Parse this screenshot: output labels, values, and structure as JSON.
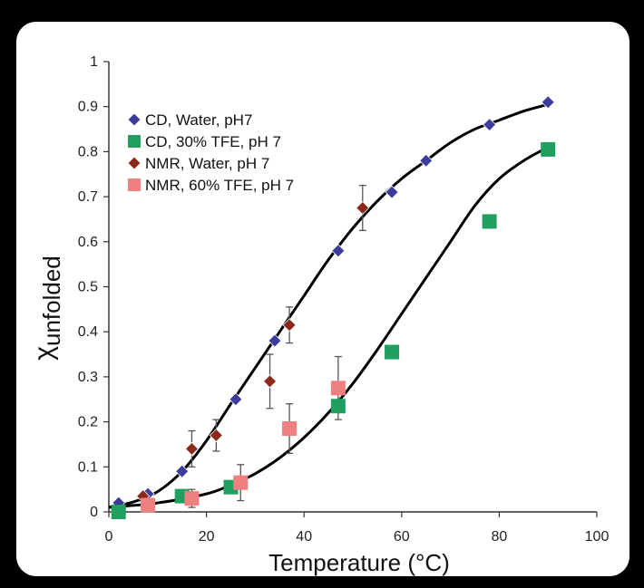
{
  "chart_data": {
    "type": "scatter",
    "xlabel": "Temperature (°C)",
    "ylabel_main": "χ",
    "ylabel_sub": "unfolded",
    "xlim": [
      0,
      100
    ],
    "ylim": [
      0,
      1
    ],
    "xticks": [
      0,
      20,
      40,
      60,
      80,
      100
    ],
    "yticks": [
      0,
      0.1,
      0.2,
      0.3,
      0.4,
      0.5,
      0.6,
      0.7,
      0.8,
      0.9,
      1
    ],
    "xtick_labels": [
      "0",
      "20",
      "40",
      "60",
      "80",
      "100"
    ],
    "ytick_labels": [
      "0",
      "0.1",
      "0.2",
      "0.3",
      "0.4",
      "0.5",
      "0.6",
      "0.7",
      "0.8",
      "0.9",
      "1"
    ],
    "grid": false,
    "legend_position": "top-left",
    "series": [
      {
        "name": "CD, Water, pH7",
        "marker": "diamond",
        "color": "#3c3c9c",
        "x": [
          2,
          8,
          15,
          26,
          34,
          47,
          58,
          65,
          78,
          90
        ],
        "y": [
          0.02,
          0.04,
          0.09,
          0.25,
          0.38,
          0.58,
          0.71,
          0.78,
          0.86,
          0.91
        ]
      },
      {
        "name": "CD, 30% TFE, pH 7",
        "marker": "square",
        "color": "#1fa060",
        "x": [
          2,
          15,
          25,
          47,
          58,
          78,
          90
        ],
        "y": [
          0.0,
          0.035,
          0.055,
          0.235,
          0.355,
          0.645,
          0.805
        ]
      },
      {
        "name": "NMR, Water, pH 7",
        "marker": "diamond",
        "color": "#8b2a1a",
        "x": [
          7,
          17,
          22,
          33,
          37,
          52
        ],
        "y": [
          0.035,
          0.14,
          0.17,
          0.29,
          0.415,
          0.675
        ],
        "err": [
          0,
          0.04,
          0.035,
          0.06,
          0.04,
          0.05
        ]
      },
      {
        "name": "NMR, 60% TFE, pH 7",
        "marker": "square",
        "color": "#f07f7f",
        "x": [
          8,
          17,
          27,
          37,
          47
        ],
        "y": [
          0.015,
          0.03,
          0.065,
          0.185,
          0.275
        ],
        "err": [
          0,
          0.02,
          0.04,
          0.055,
          0.07
        ]
      }
    ],
    "fits": [
      {
        "x": [
          0,
          5,
          10,
          15,
          20,
          25,
          30,
          35,
          40,
          45,
          50,
          55,
          60,
          65,
          70,
          75,
          80,
          85,
          90
        ],
        "y": [
          0.01,
          0.022,
          0.045,
          0.09,
          0.158,
          0.24,
          0.32,
          0.4,
          0.48,
          0.56,
          0.63,
          0.69,
          0.74,
          0.78,
          0.82,
          0.85,
          0.87,
          0.89,
          0.905
        ]
      },
      {
        "x": [
          0,
          10,
          20,
          25,
          30,
          35,
          40,
          45,
          50,
          55,
          60,
          65,
          70,
          75,
          80,
          85,
          90
        ],
        "y": [
          0.01,
          0.02,
          0.04,
          0.06,
          0.085,
          0.12,
          0.165,
          0.22,
          0.285,
          0.36,
          0.44,
          0.52,
          0.6,
          0.68,
          0.74,
          0.78,
          0.81
        ]
      }
    ]
  }
}
